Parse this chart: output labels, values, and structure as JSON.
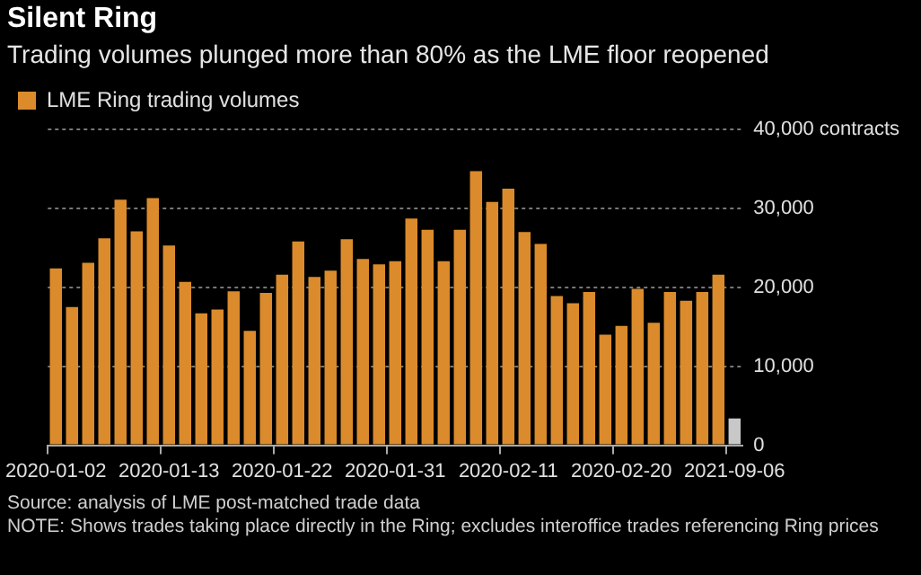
{
  "chart_data": {
    "type": "bar",
    "title": "Silent Ring",
    "subtitle": "Trading volumes plunged more than 80% as the LME floor reopened",
    "categories": [
      "2020-01-02",
      null,
      null,
      null,
      null,
      null,
      null,
      "2020-01-13",
      null,
      null,
      null,
      null,
      null,
      null,
      "2020-01-22",
      null,
      null,
      null,
      null,
      null,
      null,
      "2020-01-31",
      null,
      null,
      null,
      null,
      null,
      null,
      "2020-02-11",
      null,
      null,
      null,
      null,
      null,
      null,
      "2020-02-20",
      null,
      null,
      null,
      null,
      null,
      null,
      "2021-09-06"
    ],
    "series": [
      {
        "name": "LME Ring trading volumes",
        "color": "#db8b2b",
        "colors": [
          "#db8b2b",
          "#db8b2b",
          "#db8b2b",
          "#db8b2b",
          "#db8b2b",
          "#db8b2b",
          "#db8b2b",
          "#db8b2b",
          "#db8b2b",
          "#db8b2b",
          "#db8b2b",
          "#db8b2b",
          "#db8b2b",
          "#db8b2b",
          "#db8b2b",
          "#db8b2b",
          "#db8b2b",
          "#db8b2b",
          "#db8b2b",
          "#db8b2b",
          "#db8b2b",
          "#db8b2b",
          "#db8b2b",
          "#db8b2b",
          "#db8b2b",
          "#db8b2b",
          "#db8b2b",
          "#db8b2b",
          "#db8b2b",
          "#db8b2b",
          "#db8b2b",
          "#db8b2b",
          "#db8b2b",
          "#db8b2b",
          "#db8b2b",
          "#db8b2b",
          "#db8b2b",
          "#db8b2b",
          "#db8b2b",
          "#db8b2b",
          "#db8b2b",
          "#db8b2b",
          "#c8c8c8"
        ],
        "values": [
          22400,
          17500,
          23100,
          26200,
          31100,
          27100,
          31300,
          25300,
          20700,
          16700,
          17200,
          19500,
          14500,
          19300,
          21600,
          25800,
          21300,
          22100,
          26100,
          23600,
          22900,
          23300,
          28700,
          27300,
          23300,
          27300,
          34700,
          30800,
          32500,
          27000,
          25500,
          18900,
          18000,
          19400,
          14000,
          15100,
          19800,
          15500,
          19400,
          18300,
          19400,
          21600,
          3400
        ]
      }
    ],
    "ylim": [
      0,
      40000
    ],
    "yticks": [
      0,
      {
        "value": 10000,
        "label": "10,000"
      },
      {
        "value": 20000,
        "label": "20,000"
      },
      {
        "value": 30000,
        "label": "30,000"
      },
      {
        "value": 40000,
        "label": "40,000 contracts"
      }
    ],
    "grid": "y",
    "legend": "top left",
    "annotations": [
      "Source: analysis of LME post-matched trade data",
      "NOTE: Shows trades taking place directly in the Ring; excludes interoffice trades referencing Ring prices"
    ]
  }
}
